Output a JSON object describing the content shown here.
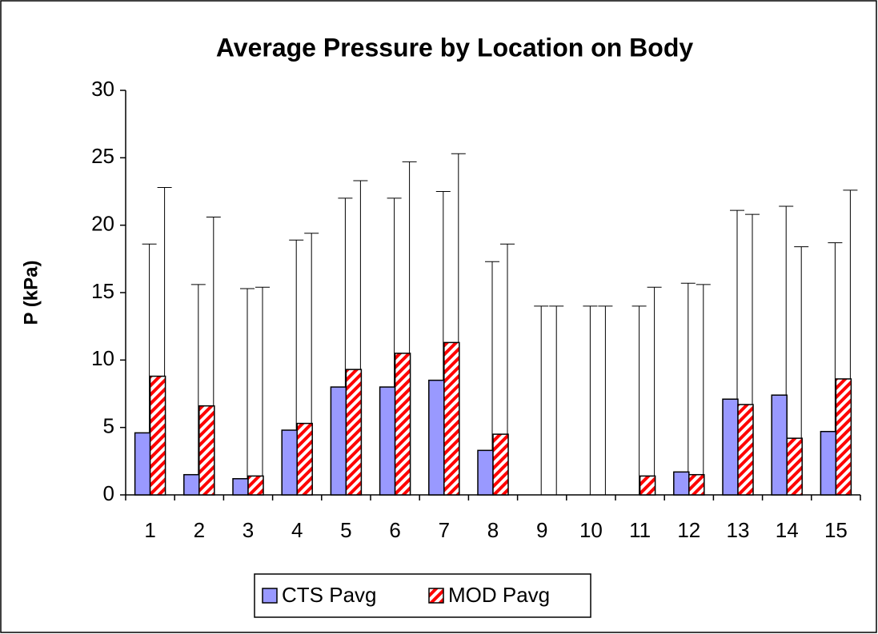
{
  "chart_data": {
    "type": "bar",
    "title": "Average Pressure by Location on Body",
    "y_label": "P (kPa)",
    "categories": [
      "1",
      "2",
      "3",
      "4",
      "5",
      "6",
      "7",
      "8",
      "9",
      "10",
      "11",
      "12",
      "13",
      "14",
      "15"
    ],
    "series": [
      {
        "name": "CTS Pavg",
        "color": "#9999ff",
        "values": [
          4.6,
          1.5,
          1.2,
          4.8,
          8.0,
          8.0,
          8.5,
          3.3,
          0,
          0,
          0,
          1.7,
          7.1,
          7.4,
          4.7
        ],
        "errors": [
          14.0,
          14.1,
          14.1,
          14.1,
          14.0,
          14.0,
          14.0,
          14.0,
          14.0,
          14.0,
          14.0,
          14.0,
          14.0,
          14.0,
          14.0
        ]
      },
      {
        "name": "MOD Pavg",
        "color": "#ff0000",
        "pattern": "hatch",
        "values": [
          8.8,
          6.6,
          1.4,
          5.3,
          9.3,
          10.5,
          11.3,
          4.5,
          0,
          0,
          1.4,
          1.5,
          6.7,
          4.2,
          8.6
        ],
        "errors": [
          14.0,
          14.0,
          14.0,
          14.1,
          14.0,
          14.2,
          14.0,
          14.1,
          14.0,
          14.0,
          14.0,
          14.1,
          14.1,
          14.2,
          14.0
        ]
      }
    ],
    "ylim": [
      0,
      30
    ],
    "yticks": [
      0,
      5,
      10,
      15,
      20,
      25,
      30
    ],
    "grid": false,
    "legend": "bottom"
  }
}
